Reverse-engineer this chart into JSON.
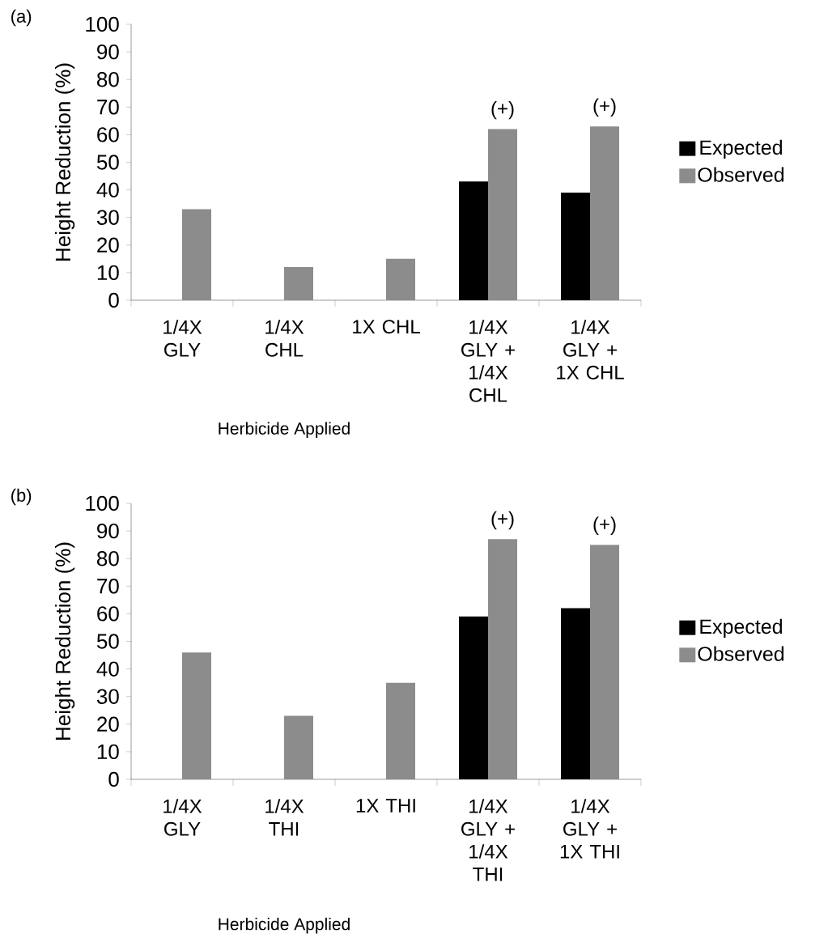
{
  "chart_data": [
    {
      "type": "bar",
      "title": "(a)",
      "xlabel": "Herbicide Applied",
      "ylabel": "Height Reduction (%)",
      "categories": [
        "1/4X GLY",
        "1/4X CHL",
        "1X CHL",
        "1/4X GLY + 1/4X CHL",
        "1/4X GLY + 1X CHL"
      ],
      "series": [
        {
          "name": "Expected",
          "color": "#000000",
          "values": [
            null,
            null,
            null,
            43,
            39
          ]
        },
        {
          "name": "Observed",
          "color": "#8c8c8c",
          "values": [
            33,
            12,
            15,
            62,
            63
          ]
        }
      ],
      "ylim": [
        0,
        100
      ],
      "yticks": [
        0,
        10,
        20,
        30,
        40,
        50,
        60,
        70,
        80,
        90,
        100
      ],
      "legend": "right",
      "grid": false,
      "annotations": [
        {
          "text": "(+)",
          "x": "1/4X GLY + 1/4X CHL",
          "y": 62
        },
        {
          "text": "(+)",
          "x": "1/4X GLY + 1X CHL",
          "y": 63
        }
      ]
    },
    {
      "type": "bar",
      "title": "(b)",
      "xlabel": "Herbicide Applied",
      "ylabel": "Height Reduction (%)",
      "categories": [
        "1/4X GLY",
        "1/4X THI",
        "1X THI",
        "1/4X GLY + 1/4X THI",
        "1/4X GLY + 1X THI"
      ],
      "series": [
        {
          "name": "Expected",
          "color": "#000000",
          "values": [
            null,
            null,
            null,
            59,
            62
          ]
        },
        {
          "name": "Observed",
          "color": "#8c8c8c",
          "values": [
            46,
            23,
            35,
            87,
            85
          ]
        }
      ],
      "ylim": [
        0,
        100
      ],
      "yticks": [
        0,
        10,
        20,
        30,
        40,
        50,
        60,
        70,
        80,
        90,
        100
      ],
      "legend": "right",
      "grid": false,
      "annotations": [
        {
          "text": "(+)",
          "x": "1/4X GLY + 1/4X THI",
          "y": 87
        },
        {
          "text": "(+)",
          "x": "1/4X GLY + 1X THI",
          "y": 85
        }
      ]
    }
  ]
}
